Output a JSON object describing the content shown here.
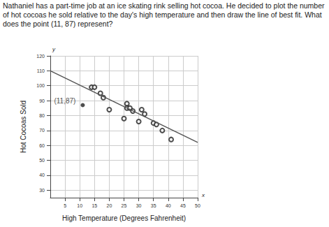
{
  "question": "Nathaniel has a part-time job at an ice skating rink selling hot cocoa. He decided to plot the number of hot cocoas he sold relative to the day's high temperature and then draw the line of best fit. What does the point (11, 87) represent?",
  "chart_data": {
    "type": "scatter",
    "x_label": "High Temperature (Degrees Fahrenheit)",
    "y_label": "Hot Cocoas Sold",
    "axis_symbols": {
      "x": "x",
      "y": "y"
    },
    "x": [
      14,
      15,
      17,
      18,
      20,
      26,
      26,
      27,
      28,
      25,
      30,
      31,
      32,
      35,
      36,
      38,
      41
    ],
    "values": [
      99,
      99,
      95,
      92,
      84,
      88,
      85,
      85,
      83,
      78,
      76,
      84,
      81,
      75,
      74,
      70,
      64
    ],
    "color": "#222222",
    "marker": "open_circle",
    "highlight": {
      "x": 11,
      "y": 87,
      "label": "(11,87)",
      "marker": "filled_circle"
    },
    "best_fit": {
      "x": [
        0,
        50
      ],
      "y": [
        110,
        62
      ],
      "color": "#555555",
      "line_style": "solid"
    },
    "xlim": [
      0,
      50
    ],
    "xticks": [
      5,
      10,
      15,
      20,
      25,
      30,
      35,
      40,
      45,
      50
    ],
    "ylim": [
      25,
      120
    ],
    "yticks": [
      30,
      40,
      50,
      60,
      70,
      80,
      90,
      100,
      110,
      120
    ],
    "grid": true
  }
}
